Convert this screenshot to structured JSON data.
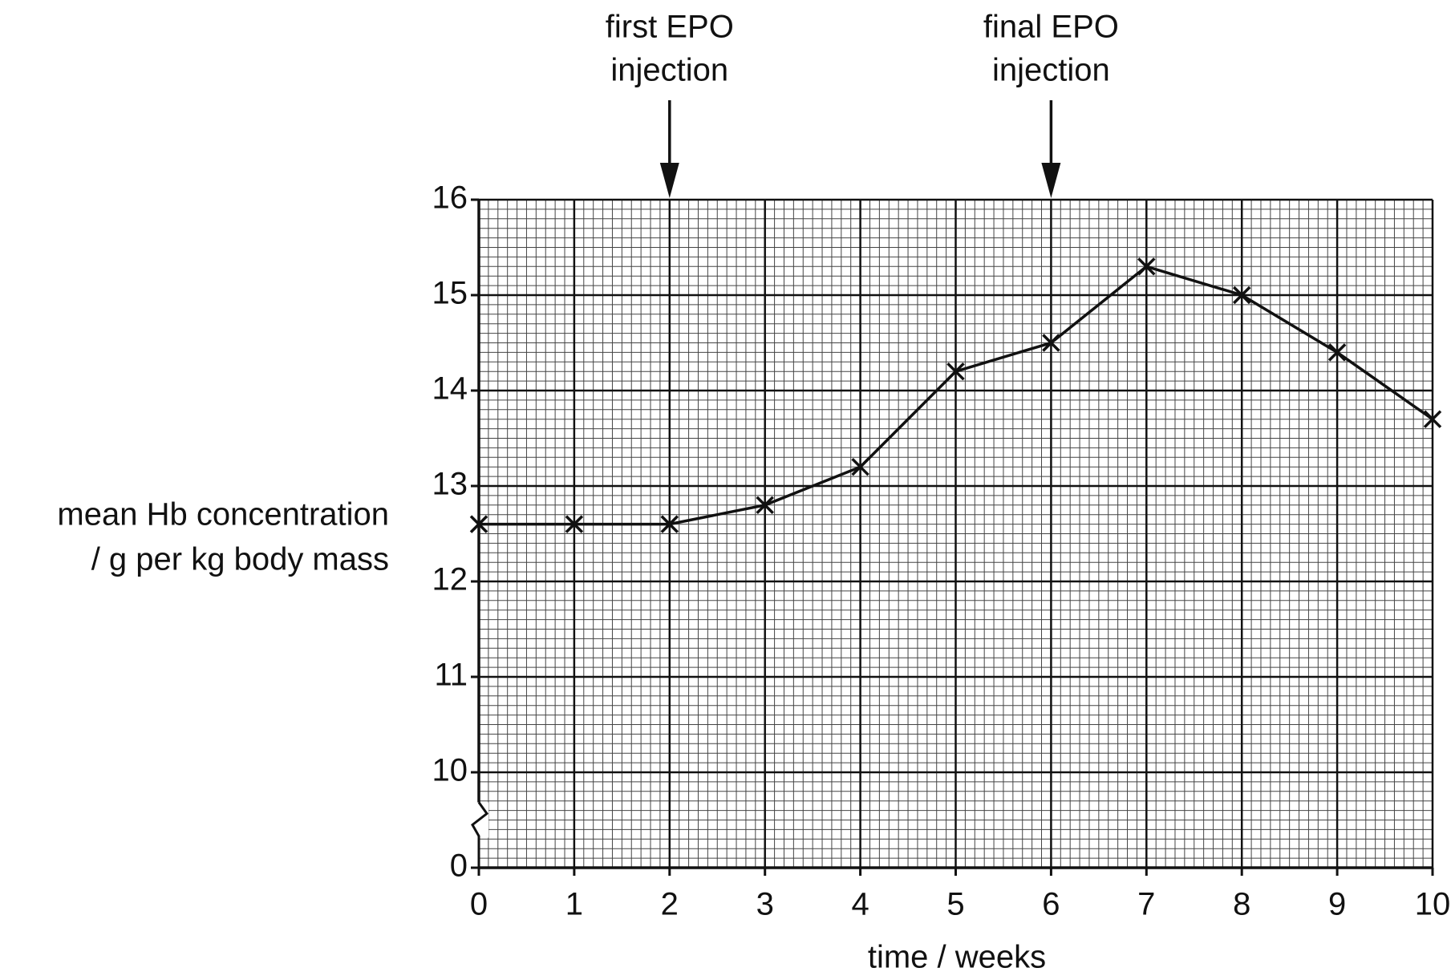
{
  "chart_data": {
    "type": "line",
    "ylabel": [
      "mean Hb concentration",
      "/ g per kg body mass"
    ],
    "xlabel": "time / weeks",
    "annotations": [
      {
        "text": [
          "first EPO",
          "injection"
        ],
        "x": 2
      },
      {
        "text": [
          "final EPO",
          "injection"
        ],
        "x": 6
      }
    ],
    "x": [
      0,
      1,
      2,
      3,
      4,
      5,
      6,
      7,
      8,
      9,
      10
    ],
    "values": [
      12.6,
      12.6,
      12.6,
      12.8,
      13.2,
      14.2,
      14.5,
      15.3,
      15.0,
      14.4,
      13.7
    ],
    "color": "#111111",
    "marker": "x",
    "xlim": [
      0,
      10
    ],
    "xticks": [
      0,
      1,
      2,
      3,
      4,
      5,
      6,
      7,
      8,
      9,
      10
    ],
    "ylim": [
      0,
      16
    ],
    "yticks": [
      0,
      10,
      11,
      12,
      13,
      14,
      15,
      16
    ],
    "axis_break": [
      0,
      10
    ],
    "grid": true
  }
}
